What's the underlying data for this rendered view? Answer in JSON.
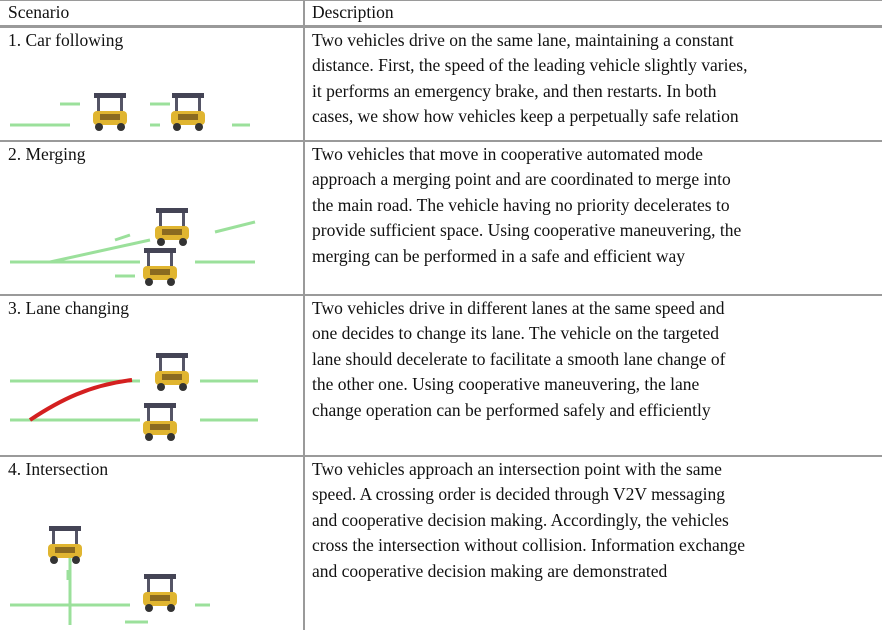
{
  "table": {
    "header": [
      "Scenario",
      "Description"
    ],
    "rows": [
      {
        "scenario": "1. Car following",
        "description": [
          "Two vehicles drive on the same lane, maintaining a constant",
          "distance. First, the speed of the leading vehicle slightly varies,",
          "it performs an emergency brake, and then restarts. In both",
          "cases, we show how vehicles keep a perpetually safe relation"
        ]
      },
      {
        "scenario": "2. Merging",
        "description": [
          "Two vehicles that move in cooperative automated mode",
          "approach a merging point and are coordinated to merge into",
          "the main road. The vehicle having no priority decelerates to",
          "provide sufficient space. Using cooperative maneuvering, the",
          "merging can be performed in a safe and efficient way"
        ]
      },
      {
        "scenario": "3. Lane changing",
        "description": [
          "Two vehicles drive in different lanes at the same speed and",
          "one decides to change its lane. The vehicle on the targeted",
          "lane should decelerate to facilitate a smooth lane change of",
          "the other one. Using cooperative maneuvering, the lane",
          "change operation can be performed safely and efficiently"
        ]
      },
      {
        "scenario": "4. Intersection",
        "description": [
          "Two vehicles approach an intersection point with the same",
          "speed. A crossing order is decided through V2V messaging",
          "and cooperative decision making. Accordingly, the vehicles",
          "cross the intersection without collision. Information exchange",
          "and cooperative decision making are demonstrated"
        ]
      }
    ]
  }
}
